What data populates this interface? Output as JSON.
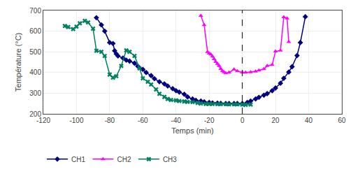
{
  "chart_data": {
    "type": "line",
    "xlabel": "Temps (min)",
    "ylabel": "Température (°C)",
    "xlim": [
      -120,
      60
    ],
    "ylim": [
      200,
      700
    ],
    "xticks": [
      -120,
      -100,
      -80,
      -60,
      -40,
      -20,
      0,
      20,
      40,
      60
    ],
    "yticks": [
      200,
      300,
      400,
      500,
      600,
      700
    ],
    "grid": true,
    "legend": "bottom",
    "reference_lines": [
      {
        "x": 0,
        "line_style": "dashed",
        "color": "#000000"
      }
    ],
    "series": [
      {
        "name": "CH1",
        "color": "#000080",
        "marker": "diamond",
        "line_style": "solid",
        "x": [
          -88,
          -85,
          -83,
          -80,
          -78,
          -77,
          -76,
          -75,
          -72,
          -70,
          -68,
          -65,
          -63,
          -60,
          -58,
          -55,
          -53,
          -50,
          -47,
          -45,
          -42,
          -40,
          -38,
          -35,
          -33,
          -30,
          -28,
          -25,
          -23,
          -20,
          -18,
          -15,
          -13,
          -10,
          -8,
          -5,
          -3,
          0,
          3,
          5,
          8,
          10,
          13,
          15,
          18,
          20,
          23,
          25,
          28,
          30,
          33,
          35,
          38
        ],
        "values": [
          665,
          630,
          600,
          545,
          540,
          505,
          490,
          480,
          470,
          460,
          455,
          445,
          430,
          415,
          400,
          385,
          370,
          355,
          345,
          335,
          322,
          312,
          305,
          295,
          282,
          272,
          265,
          262,
          258,
          255,
          253,
          252,
          251,
          250,
          250,
          250,
          250,
          250,
          255,
          262,
          272,
          280,
          290,
          298,
          312,
          325,
          348,
          372,
          402,
          428,
          482,
          545,
          670
        ]
      },
      {
        "name": "CH2",
        "color": "#FF00FF",
        "marker": "triangle-up",
        "line_style": "solid",
        "x": [
          -25,
          -23,
          -21,
          -20,
          -19,
          -18,
          -17,
          -16,
          -15,
          -14,
          -13,
          -12,
          -11,
          -10,
          -8,
          -5,
          -3,
          0,
          2,
          5,
          8,
          10,
          13,
          15,
          18,
          20,
          23,
          25,
          27,
          28
        ],
        "values": [
          675,
          630,
          500,
          492,
          488,
          478,
          465,
          452,
          442,
          432,
          418,
          407,
          402,
          397,
          400,
          415,
          407,
          400,
          400,
          402,
          405,
          410,
          417,
          432,
          437,
          502,
          507,
          668,
          662,
          548
        ]
      },
      {
        "name": "CH3",
        "color": "#008060",
        "marker": "x",
        "line_style": "solid",
        "x": [
          -107,
          -105,
          -102,
          -100,
          -98,
          -95,
          -93,
          -90,
          -88,
          -85,
          -83,
          -80,
          -78,
          -76,
          -73,
          -70,
          -68,
          -65,
          -62,
          -60,
          -57,
          -55,
          -52,
          -50,
          -47,
          -45,
          -43,
          -40,
          -38,
          -35,
          -33,
          -30,
          -27,
          -25,
          -22,
          -20,
          -18,
          -15,
          -13,
          -10,
          -8,
          -5,
          -3,
          0,
          2,
          5
        ],
        "values": [
          625,
          620,
          610,
          622,
          638,
          650,
          642,
          612,
          505,
          500,
          480,
          390,
          375,
          382,
          432,
          507,
          500,
          480,
          420,
          372,
          355,
          342,
          318,
          297,
          282,
          272,
          267,
          265,
          262,
          260,
          258,
          257,
          253,
          250,
          248,
          248,
          248,
          247,
          247,
          247,
          246,
          246,
          246,
          245,
          244,
          245
        ]
      }
    ]
  }
}
